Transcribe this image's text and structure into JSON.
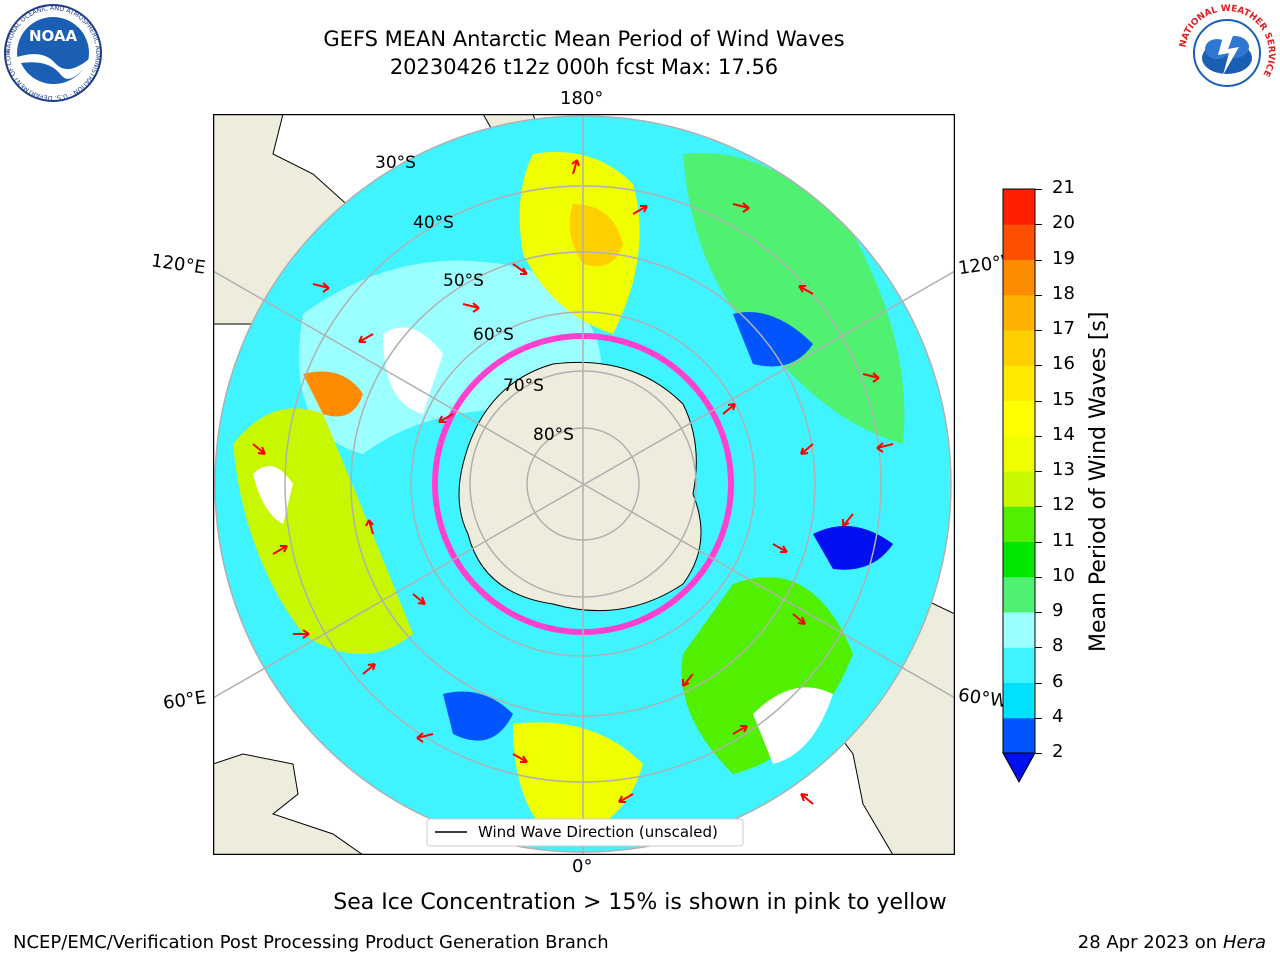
{
  "header": {
    "title_line1": "GEFS MEAN Antarctic Mean Period of Wind Waves",
    "title_line2": "20230426 t12z 000h fcst   Max: 17.56"
  },
  "logos": {
    "left": "NOAA",
    "left_ring_text": "NATIONAL OCEANIC AND ATMOSPHERIC ADMINISTRATION · U.S. DEPARTMENT OF COMMERCE",
    "right_ring_text": "NATIONAL WEATHER SERVICE"
  },
  "map": {
    "lon_labels": {
      "top": "180°",
      "bottom": "0°",
      "upper_left": "120°E",
      "upper_right": "120°W",
      "lower_left": "60°E",
      "lower_right": "60°W"
    },
    "lat_labels": [
      "30°S",
      "40°S",
      "50°S",
      "60°S",
      "70°S",
      "80°S"
    ],
    "legend": "Wind Wave Direction (unscaled)"
  },
  "colorbar": {
    "title": "Mean Period of Wind Waves [s]",
    "ticks": [
      "2",
      "4",
      "6",
      "8",
      "9",
      "10",
      "11",
      "12",
      "13",
      "14",
      "15",
      "16",
      "17",
      "18",
      "19",
      "20",
      "21"
    ],
    "colors": [
      "#0055ff",
      "#00e0ff",
      "#40f4ff",
      "#9cffff",
      "#50f070",
      "#00e600",
      "#50f000",
      "#c8f800",
      "#f0ff00",
      "#ffff00",
      "#ffea00",
      "#ffd000",
      "#ffb000",
      "#ff8c00",
      "#ff5000",
      "#ff2000"
    ],
    "extend_color": "#0010f0"
  },
  "caption": "Sea Ice Concentration > 15% is shown in pink to yellow",
  "footer": {
    "left": "NCEP/EMC/Verification Post Processing Product Generation Branch",
    "right_date": "28 Apr 2023 on",
    "right_host": "Hera"
  }
}
